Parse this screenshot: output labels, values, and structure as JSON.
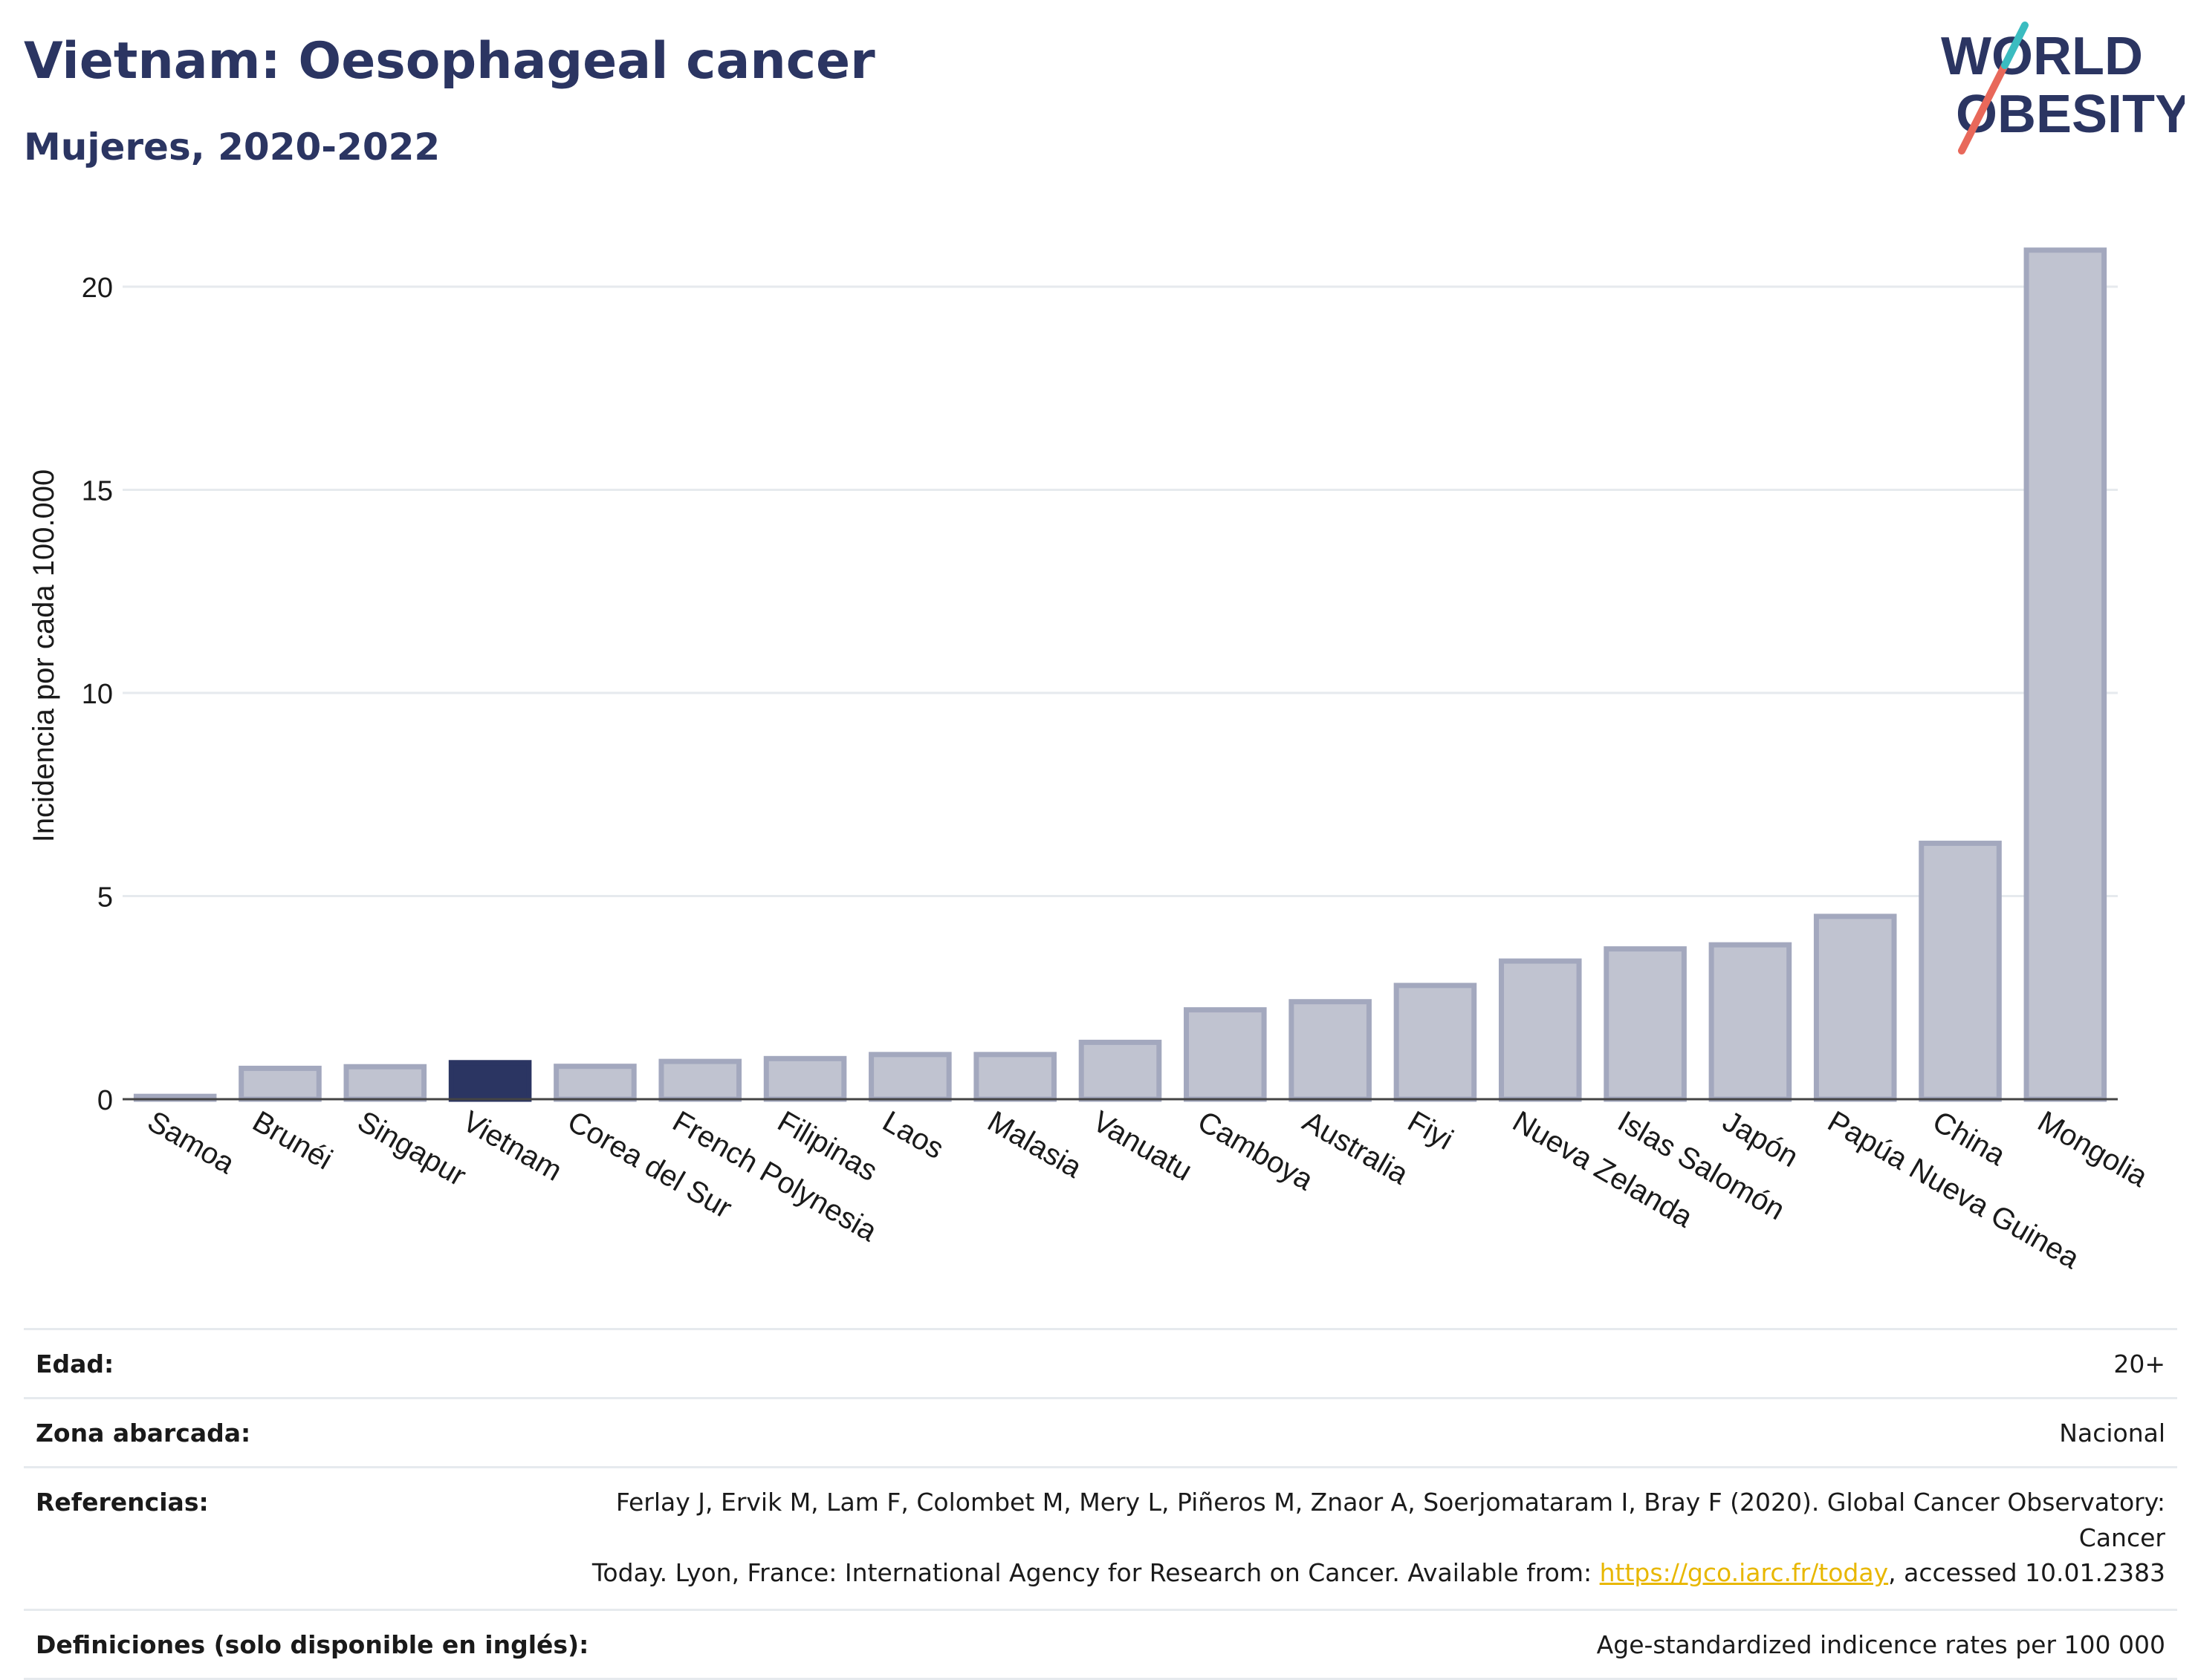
{
  "header": {
    "title": "Vietnam: Oesophageal cancer",
    "subtitle": "Mujeres, 2020-2022"
  },
  "logo": {
    "line1": "WORLD",
    "line2": "OBESITY"
  },
  "chart_data": {
    "type": "bar",
    "ylabel": "Incidencia por cada 100.000",
    "xlabel": "",
    "ylim": [
      0,
      22
    ],
    "yticks": [
      0,
      5,
      10,
      15,
      20
    ],
    "grid": true,
    "highlight": "Vietnam",
    "colors": {
      "bar": "#c0c3d0",
      "bar_border": "#a3a8be",
      "highlight": "#2b3562",
      "grid": "#e6eaee",
      "axis": "#444444"
    },
    "categories": [
      "Samoa",
      "Brunéi",
      "Singapur",
      "Vietnam",
      "Corea del Sur",
      "French Polynesia",
      "Filipinas",
      "Laos",
      "Malasia",
      "Vanuatu",
      "Camboya",
      "Australia",
      "Fiyi",
      "Nueva Zelanda",
      "Islas Salomón",
      "Japón",
      "Papúa Nueva Guinea",
      "China",
      "Mongolia"
    ],
    "values": [
      0.07,
      0.76,
      0.8,
      0.9,
      0.81,
      0.93,
      1.0,
      1.1,
      1.1,
      1.4,
      2.2,
      2.4,
      2.8,
      3.4,
      3.7,
      3.8,
      4.5,
      6.3,
      20.9
    ]
  },
  "meta": {
    "rows": [
      {
        "label": "Edad:",
        "value": "20+"
      },
      {
        "label": "Zona abarcada:",
        "value": "Nacional"
      },
      {
        "label": "Referencias:",
        "value_line1": "Ferlay J, Ervik M, Lam F, Colombet M, Mery L, Piñeros M, Znaor A, Soerjomataram I, Bray F (2020). Global Cancer Observatory: Cancer",
        "value_line2_pre": "Today. Lyon, France: International Agency for Research on Cancer. Available from:",
        "link": "https://gco.iarc.fr/today",
        "value_line2_post": ", accessed 10.01.2383"
      },
      {
        "label": "Definiciones (solo disponible en inglés):",
        "value": "Age-standardized indicence rates per 100 000"
      }
    ]
  }
}
